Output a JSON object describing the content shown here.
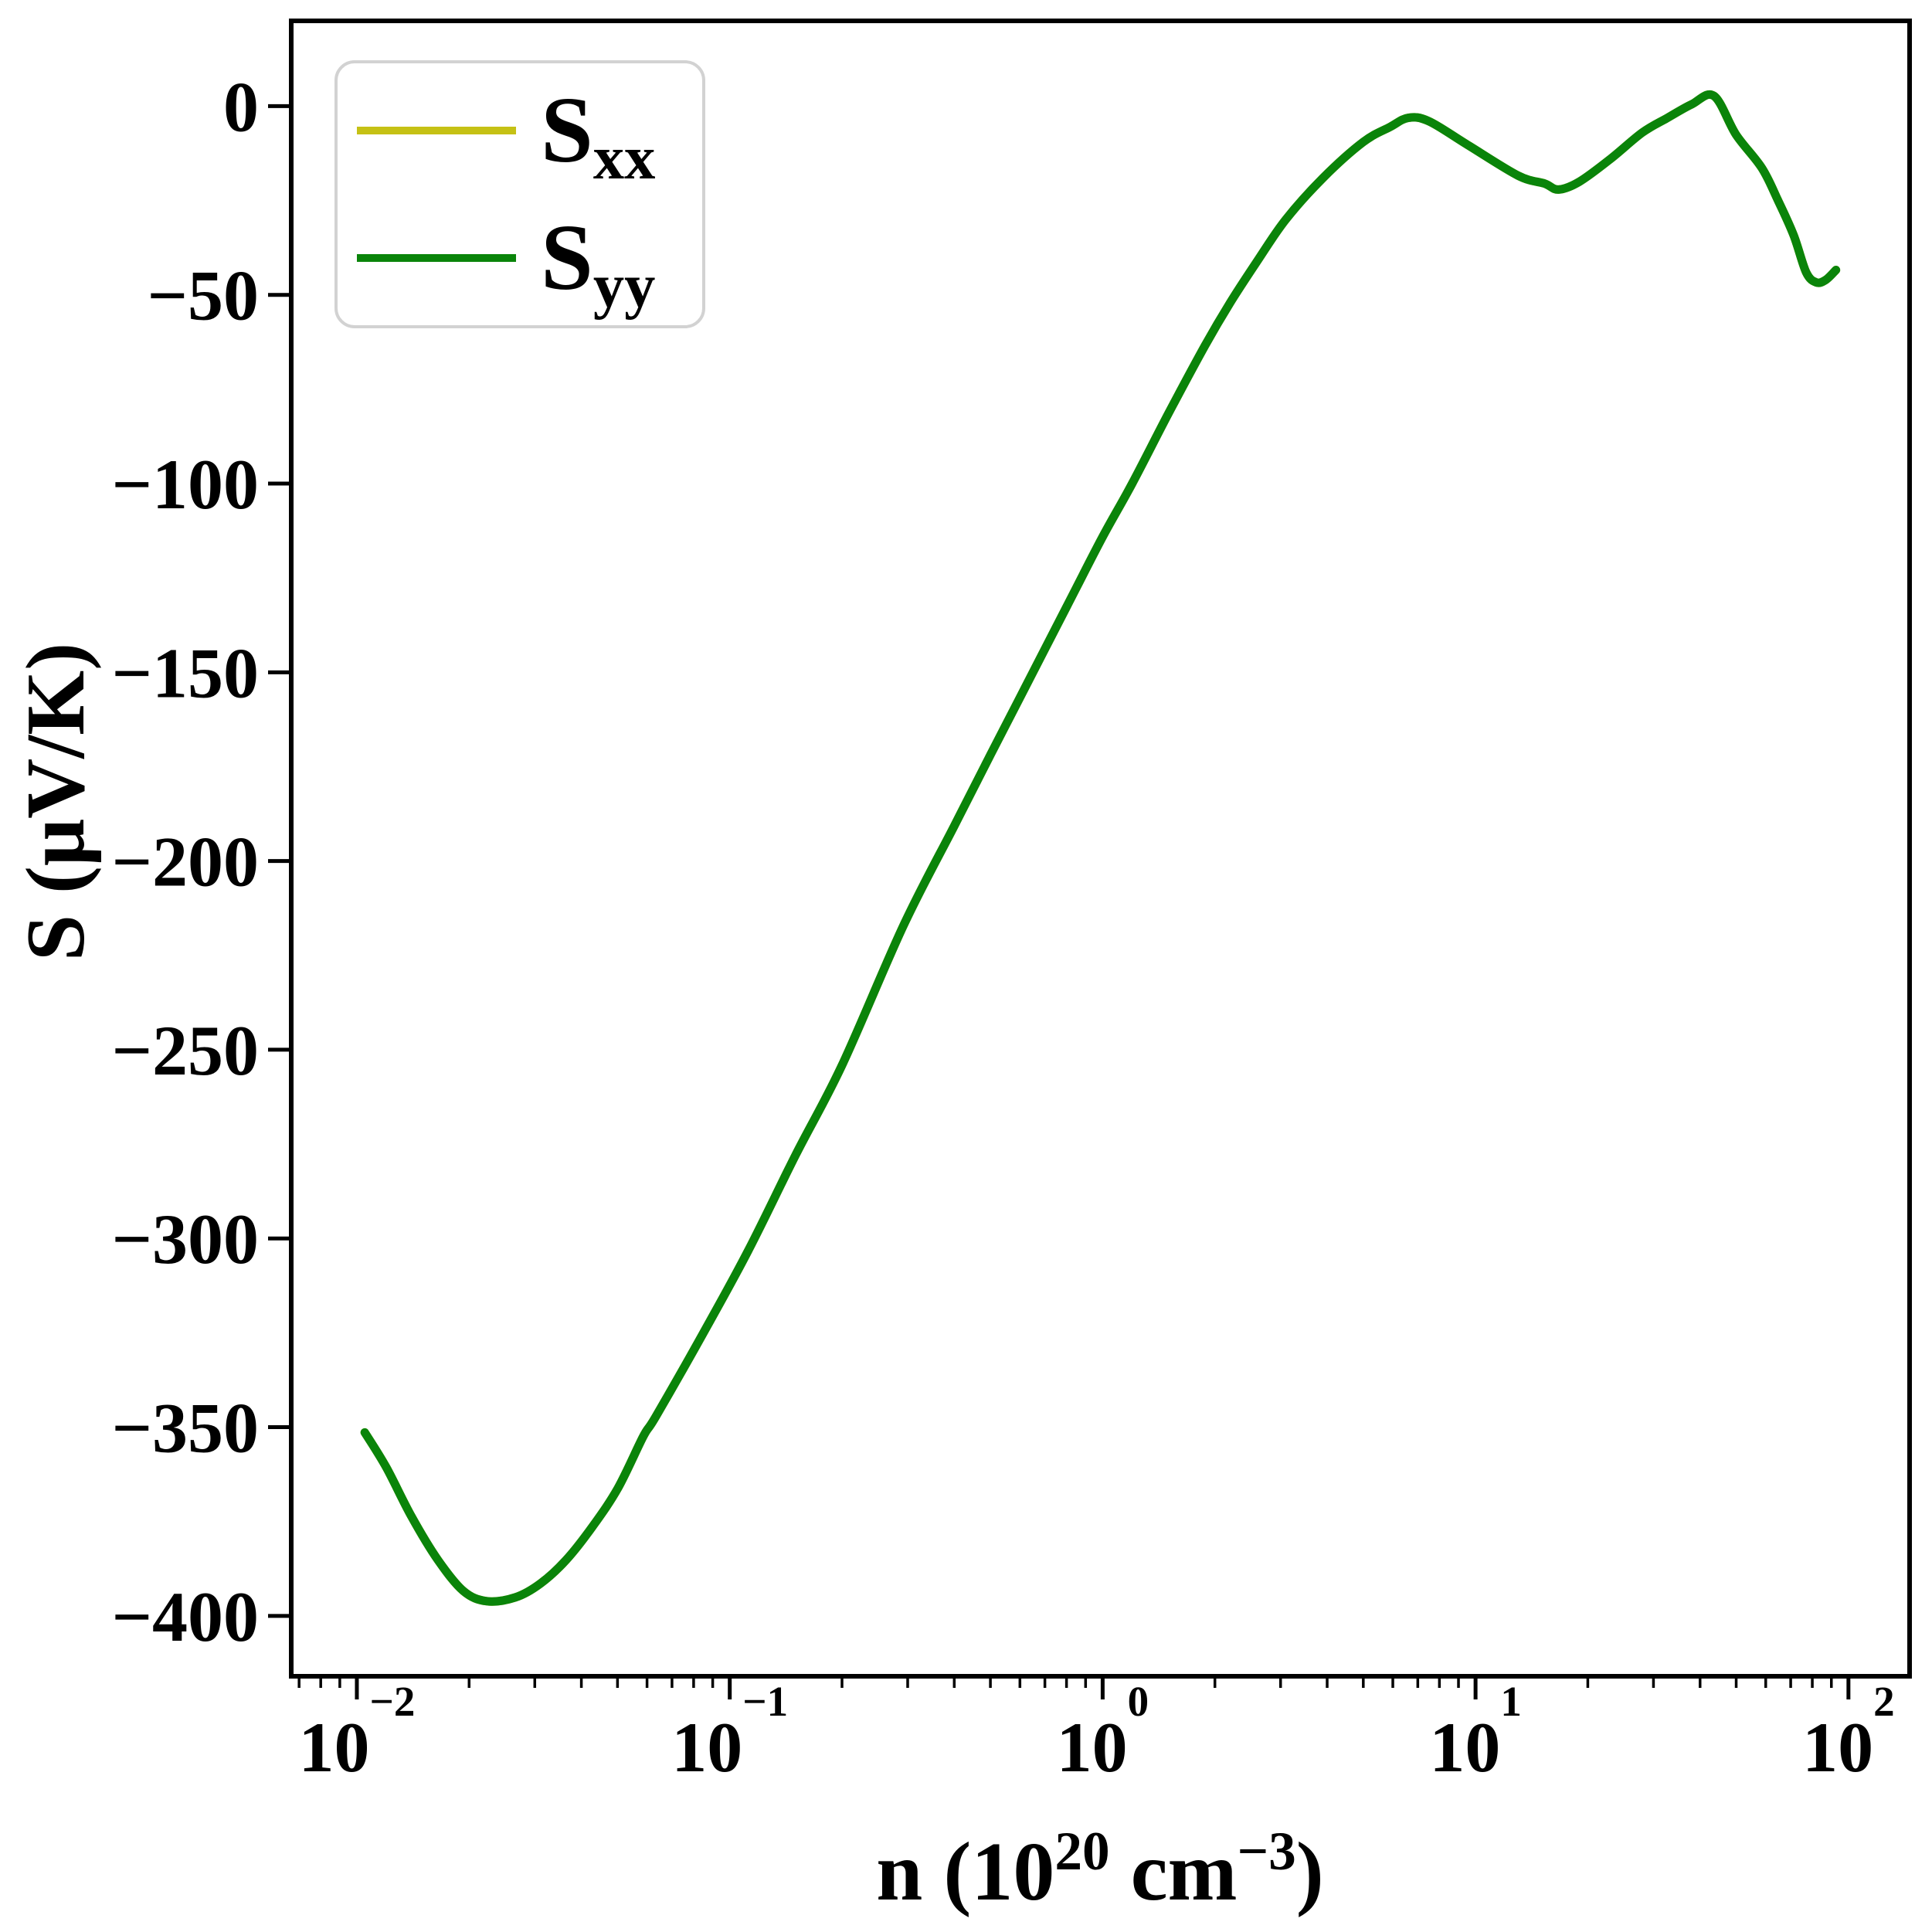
{
  "figure": {
    "background": "#ffffff"
  },
  "axes": {
    "ylabel": {
      "text": "S (μV/K)"
    },
    "xlabel": {
      "prefix": "n (10",
      "sup1": "20",
      "mid": " cm",
      "sup2": "−3",
      "suffix": ")"
    },
    "x_ticks": {
      "base": "10",
      "exponents": [
        "−2",
        "−1",
        "0",
        "1",
        "2"
      ],
      "values": [
        0.01,
        0.1,
        1,
        10,
        100
      ]
    },
    "y_ticks": {
      "labels": [
        "0",
        "−50",
        "−100",
        "−150",
        "−200",
        "−250",
        "−300",
        "−350",
        "−400"
      ],
      "values": [
        0,
        -50,
        -100,
        -150,
        -200,
        -250,
        -300,
        -350,
        -400
      ]
    },
    "spine_color": "#000000",
    "tick_color": "#000000"
  },
  "legend": {
    "entries": [
      {
        "label": "S",
        "sub": "xx",
        "color": "#c5c115"
      },
      {
        "label": "S",
        "sub": "yy",
        "color": "#0a840a"
      }
    ]
  },
  "chart_data": {
    "type": "line",
    "title": "",
    "xlabel": "n (10^20 cm^-3)",
    "ylabel": "S (μV/K)",
    "x_scale": "log",
    "xlim": [
      0.0067,
      146
    ],
    "ylim": [
      -416,
      23
    ],
    "grid": false,
    "legend_position": "upper left",
    "x": [
      0.0105,
      0.012,
      0.014,
      0.0165,
      0.0193,
      0.0223,
      0.0266,
      0.0311,
      0.0364,
      0.0428,
      0.0501,
      0.0586,
      0.0635,
      0.085,
      0.112,
      0.15,
      0.2,
      0.292,
      0.4,
      0.5,
      0.6,
      0.8,
      1.0,
      1.2,
      1.5,
      1.88,
      2.2,
      2.6,
      3.1,
      3.9,
      5.0,
      5.9,
      6.6,
      7.5,
      9.5,
      13,
      15.3,
      16.7,
      19,
      23,
      28,
      32.7,
      38,
      43.6,
      50,
      58.6,
      64.9,
      71.3,
      77,
      82,
      87,
      92.6
    ],
    "series": [
      {
        "name": "S_xx",
        "color": "#c5c115",
        "values": [
          -351.4,
          -360.7,
          -373.6,
          -385.2,
          -393.4,
          -396.1,
          -395.1,
          -391.4,
          -385.2,
          -376.4,
          -366.2,
          -352.5,
          -347.0,
          -325.0,
          -303.3,
          -278.0,
          -254.1,
          -217.2,
          -190.7,
          -171.9,
          -156.7,
          -132.7,
          -114.1,
          -100.0,
          -81.5,
          -63.5,
          -52.0,
          -41.0,
          -30.0,
          -19.0,
          -9.5,
          -5.5,
          -3.1,
          -4.0,
          -10.2,
          -18.4,
          -20.5,
          -22.1,
          -20.0,
          -14.0,
          -7.0,
          -3.1,
          0.5,
          2.7,
          -7.6,
          -16.4,
          -25.2,
          -34.2,
          -44.0,
          -46.7,
          -46.0,
          -43.4
        ]
      },
      {
        "name": "S_yy",
        "color": "#0a840a",
        "values": [
          -351.4,
          -360.7,
          -373.6,
          -385.2,
          -393.4,
          -396.1,
          -395.1,
          -391.4,
          -385.2,
          -376.4,
          -366.2,
          -352.5,
          -347.0,
          -325.0,
          -303.3,
          -278.0,
          -254.1,
          -217.2,
          -190.7,
          -171.9,
          -156.7,
          -132.7,
          -114.1,
          -100.0,
          -81.5,
          -63.5,
          -52.0,
          -41.0,
          -30.0,
          -19.0,
          -9.5,
          -5.5,
          -3.1,
          -4.0,
          -10.2,
          -18.4,
          -20.5,
          -22.1,
          -20.0,
          -14.0,
          -7.0,
          -3.1,
          0.5,
          2.7,
          -7.6,
          -16.4,
          -25.2,
          -34.2,
          -44.0,
          -46.7,
          -46.0,
          -43.4
        ]
      }
    ]
  }
}
